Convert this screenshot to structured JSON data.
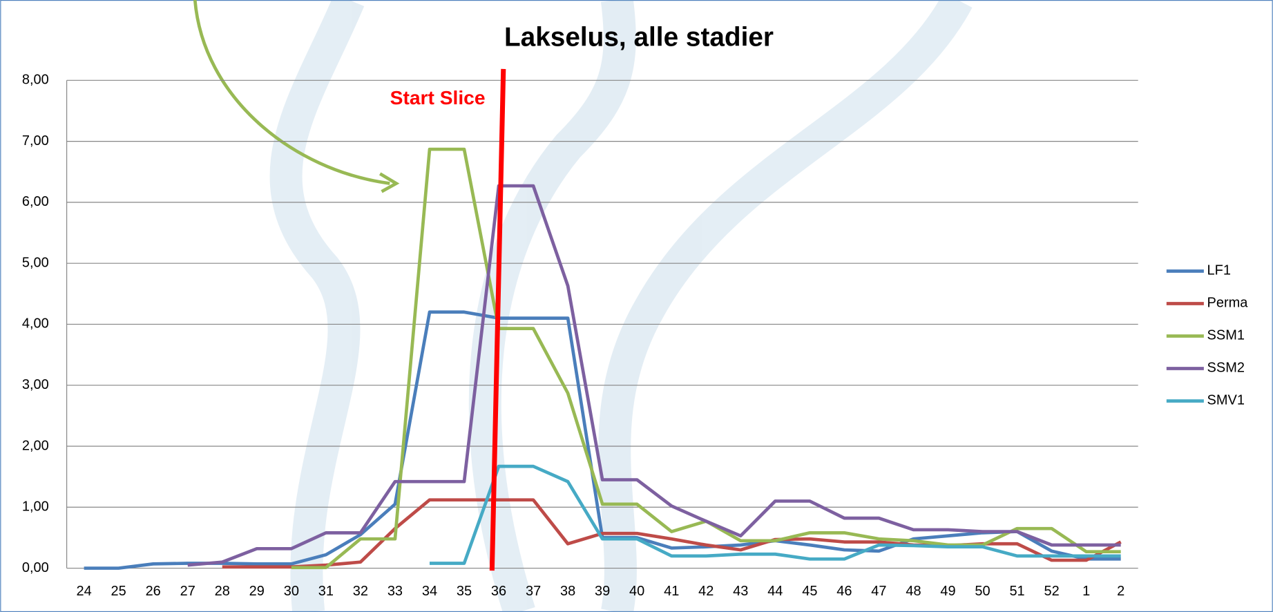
{
  "chart_data": {
    "type": "line",
    "title": "Lakselus, alle stadier",
    "annotation": "Start Slice",
    "categories": [
      "24",
      "25",
      "26",
      "27",
      "28",
      "29",
      "30",
      "31",
      "32",
      "33",
      "34",
      "35",
      "36",
      "37",
      "38",
      "39",
      "40",
      "41",
      "42",
      "43",
      "44",
      "45",
      "46",
      "47",
      "48",
      "49",
      "50",
      "51",
      "52",
      "1",
      "2"
    ],
    "ylim": [
      0,
      8
    ],
    "yticks": [
      {
        "value": 0,
        "label": "0,00"
      },
      {
        "value": 1,
        "label": "1,00"
      },
      {
        "value": 2,
        "label": "2,00"
      },
      {
        "value": 3,
        "label": "3,00"
      },
      {
        "value": 4,
        "label": "4,00"
      },
      {
        "value": 5,
        "label": "5,00"
      },
      {
        "value": 6,
        "label": "6,00"
      },
      {
        "value": 7,
        "label": "7,00"
      },
      {
        "value": 8,
        "label": "8,00"
      }
    ],
    "grid": true,
    "legend": "right",
    "series": [
      {
        "name": "LF1",
        "color": "#4a7ebb",
        "values": [
          0,
          0,
          0.07,
          0.08,
          0.08,
          0.07,
          0.07,
          0.22,
          0.55,
          1.05,
          4.2,
          4.2,
          4.1,
          4.1,
          4.1,
          0.5,
          0.5,
          0.33,
          0.35,
          0.38,
          0.45,
          0.38,
          0.3,
          0.28,
          0.48,
          0.53,
          0.58,
          0.6,
          0.28,
          0.15,
          0.15
        ]
      },
      {
        "name": "Perma",
        "color": "#be4b48",
        "values": [
          null,
          null,
          null,
          null,
          0.02,
          0.02,
          0.02,
          0.05,
          0.1,
          0.65,
          1.12,
          1.12,
          1.12,
          1.12,
          0.4,
          0.57,
          0.57,
          0.48,
          0.38,
          0.3,
          0.47,
          0.48,
          0.43,
          0.43,
          0.38,
          0.37,
          0.4,
          0.4,
          0.13,
          0.13,
          0.43
        ]
      },
      {
        "name": "SSM1",
        "color": "#98b954",
        "values": [
          null,
          null,
          null,
          null,
          null,
          null,
          0.01,
          0.01,
          0.48,
          0.48,
          6.87,
          6.87,
          3.93,
          3.93,
          2.87,
          1.05,
          1.05,
          0.6,
          0.77,
          0.45,
          0.45,
          0.58,
          0.58,
          0.48,
          0.45,
          0.38,
          0.38,
          0.65,
          0.65,
          0.27,
          0.27
        ]
      },
      {
        "name": "SSM2",
        "color": "#7d60a0",
        "values": [
          null,
          null,
          null,
          0.05,
          0.1,
          0.32,
          0.32,
          0.58,
          0.58,
          1.42,
          1.42,
          1.42,
          6.27,
          6.27,
          4.63,
          1.45,
          1.45,
          1.02,
          0.77,
          0.53,
          1.1,
          1.1,
          0.82,
          0.82,
          0.63,
          0.63,
          0.6,
          0.6,
          0.38,
          0.38,
          0.38
        ]
      },
      {
        "name": "SMV1",
        "color": "#46aac5",
        "values": [
          null,
          null,
          null,
          null,
          null,
          null,
          null,
          null,
          null,
          null,
          0.08,
          0.08,
          1.67,
          1.67,
          1.42,
          0.48,
          0.48,
          0.2,
          0.2,
          0.23,
          0.23,
          0.15,
          0.15,
          0.38,
          0.37,
          0.35,
          0.35,
          0.2,
          0.2,
          0.2,
          0.2
        ]
      }
    ]
  }
}
